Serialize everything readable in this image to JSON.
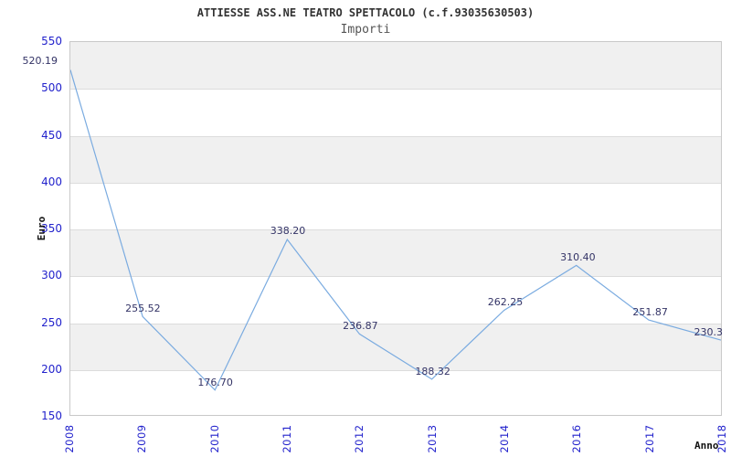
{
  "page": {
    "background": "#ffffff"
  },
  "chart_data": {
    "type": "line",
    "title": "ATTIESSE ASS.NE TEATRO SPETTACOLO (c.f.93035630503)",
    "subtitle": "Importi",
    "ylabel": "Euro",
    "xlabel": "Anno",
    "categories": [
      "2008",
      "2009",
      "2010",
      "2011",
      "2012",
      "2013",
      "2014",
      "2016",
      "2017",
      "2018"
    ],
    "values": [
      520.19,
      255.52,
      176.7,
      338.2,
      236.87,
      188.32,
      262.25,
      310.4,
      251.87,
      230.3
    ],
    "point_labels": [
      "520.19",
      "255.52",
      "176.70",
      "338.20",
      "236.87",
      "188.32",
      "262.25",
      "310.40",
      "251.87",
      "230.3"
    ],
    "ylim": [
      150,
      550
    ],
    "ytick_step": 50,
    "grid": true,
    "legend_position": "none",
    "plot_bands": "alternating-horizontal",
    "colors": {
      "line": "#7aabe0",
      "tick_label": "#2222cc",
      "data_label": "#333366",
      "band": "#f0f0f0",
      "gridline": "#dcdcdc",
      "plot_border": "#c9c9c9",
      "title": "#333333",
      "subtitle": "#555555",
      "axis_title": "#111111",
      "background": "#ffffff"
    }
  }
}
